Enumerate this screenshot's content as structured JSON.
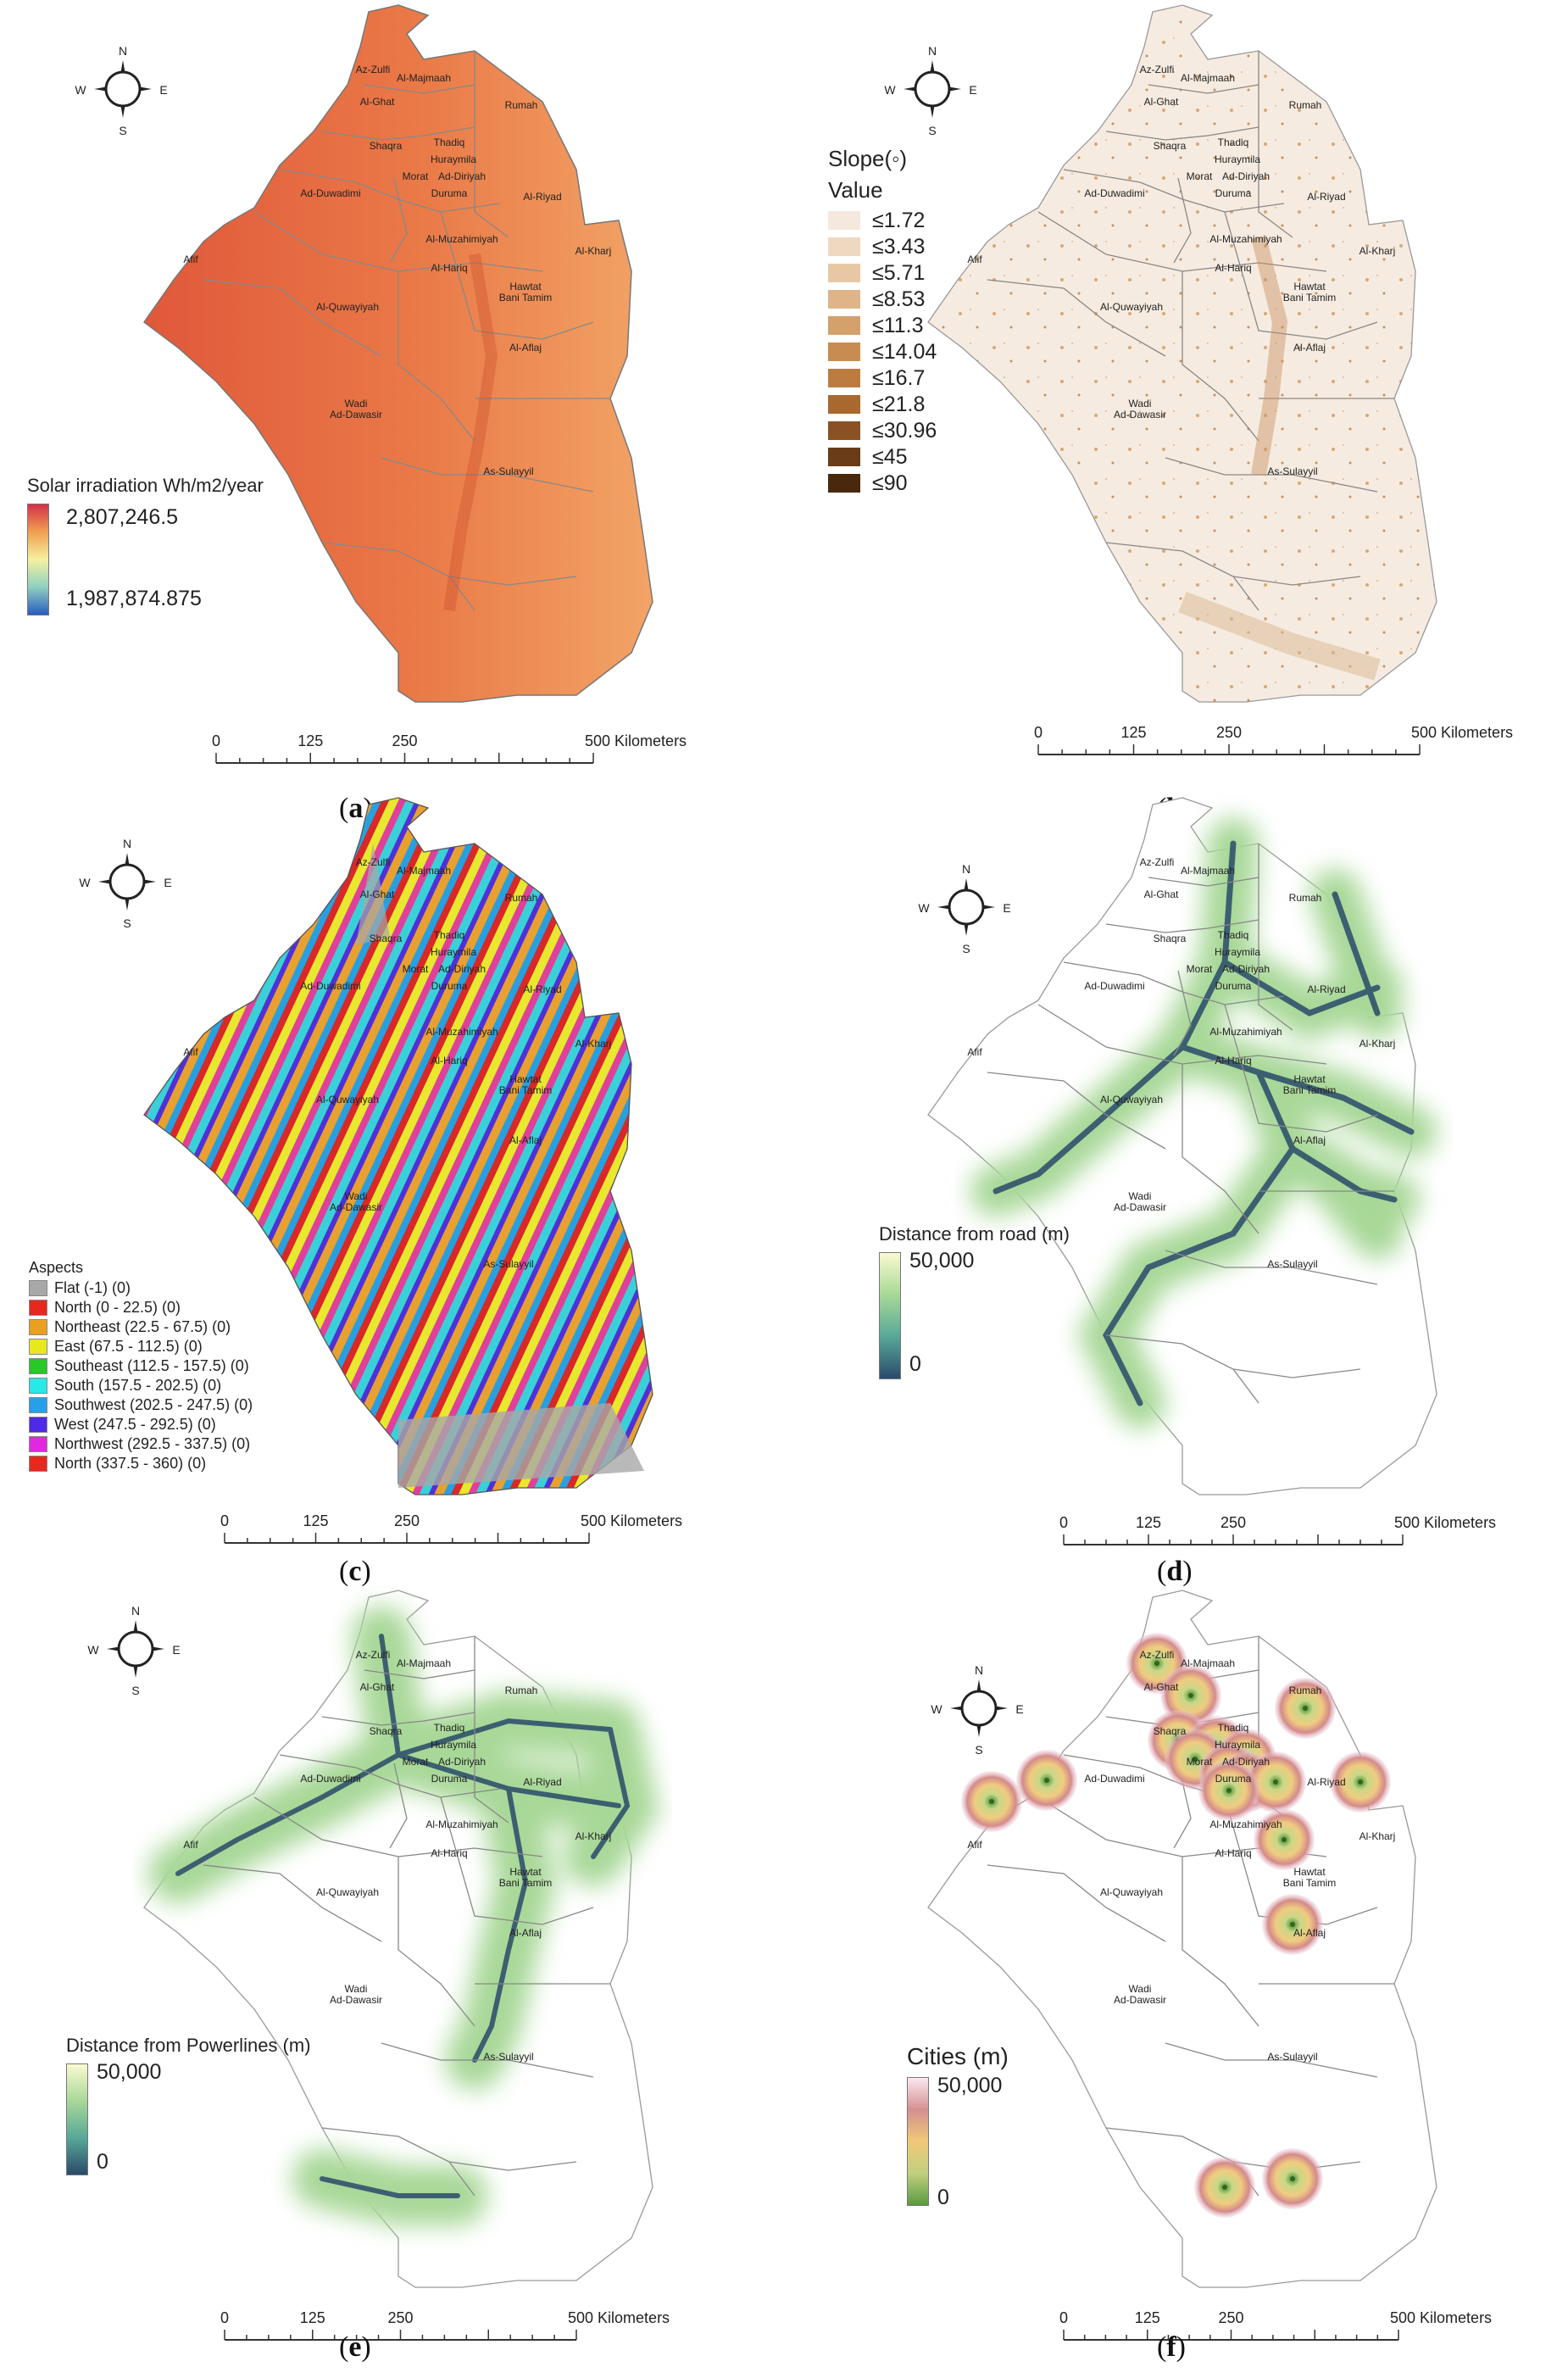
{
  "compass": {
    "n": "N",
    "s": "S",
    "e": "E",
    "w": "W"
  },
  "places": [
    "Az-Zulfi",
    "Al-Majmaah",
    "Al-Ghat",
    "Rumah",
    "Shaqra",
    "Thadiq",
    "Huraymila",
    "Morat",
    "Ad-Diriyah",
    "Duruma",
    "Ad-Duwadimi",
    "Al-Riyad",
    "Al-Muzahimiyah",
    "Al-Kharj",
    "Afif",
    "Al-Hariq",
    "Hawtat Bani Tamim",
    "Al-Quwayiyah",
    "Al-Aflaj",
    "Wadi Ad-Dawasir",
    "As-Sulayyil"
  ],
  "scale": {
    "t0": "0",
    "t1": "125",
    "t2": "250",
    "t3": "500 Kilometers"
  },
  "panels": {
    "a": {
      "caption": "a",
      "legend_title": "Solar irradiation Wh/m2/year",
      "max": "2,807,246.5",
      "min": "1,987,874.875"
    },
    "b": {
      "caption": "b",
      "legend_title": "Slope(◦)",
      "legend_sub": "Value",
      "classes": [
        "≤1.72",
        "≤3.43",
        "≤5.71",
        "≤8.53",
        "≤11.3",
        "≤14.04",
        "≤16.7",
        "≤21.8",
        "≤30.96",
        "≤45",
        "≤90"
      ]
    },
    "c": {
      "caption": "c",
      "legend_title": "Aspects",
      "classes": [
        "Flat (-1) (0)",
        "North (0 - 22.5) (0)",
        "Northeast (22.5 - 67.5) (0)",
        "East (67.5 - 112.5) (0)",
        "Southeast (112.5 - 157.5) (0)",
        "South (157.5 - 202.5) (0)",
        "Southwest (202.5 - 247.5) (0)",
        "West (247.5 - 292.5) (0)",
        "Northwest (292.5 - 337.5) (0)",
        "North (337.5 - 360) (0)"
      ]
    },
    "d": {
      "caption": "d",
      "legend_title": "Distance from road (m)",
      "max": "50,000",
      "min": "0"
    },
    "e": {
      "caption": "e",
      "legend_title": "Distance from Powerlines (m)",
      "max": "50,000",
      "min": "0"
    },
    "f": {
      "caption": "f",
      "legend_title": "Cities (m)",
      "max": "50,000",
      "min": "0"
    }
  },
  "colors": {
    "solar": [
      "#2a5cc0",
      "#8fd0c0",
      "#f5f0a0",
      "#f0a050",
      "#d4304a"
    ],
    "slope": [
      "#f5e8dc",
      "#efd8c0",
      "#e8c8a4",
      "#deb488",
      "#d4a06c",
      "#c88c52",
      "#bc7c40",
      "#a8682e",
      "#8a5224",
      "#6a3c18",
      "#4a280e"
    ],
    "aspect": [
      "#a8a8a8",
      "#e8281e",
      "#e8a01e",
      "#e8e81e",
      "#28c828",
      "#28e8e8",
      "#28a0e8",
      "#5028e8",
      "#e028e0",
      "#e8281e"
    ],
    "distance": [
      "#fafad0",
      "#a8d898",
      "#58a898",
      "#3a6a8a",
      "#2a4a6a"
    ],
    "cities": [
      "#fae8f0",
      "#d49090",
      "#f0c878",
      "#c0d080",
      "#5a9a40"
    ]
  }
}
